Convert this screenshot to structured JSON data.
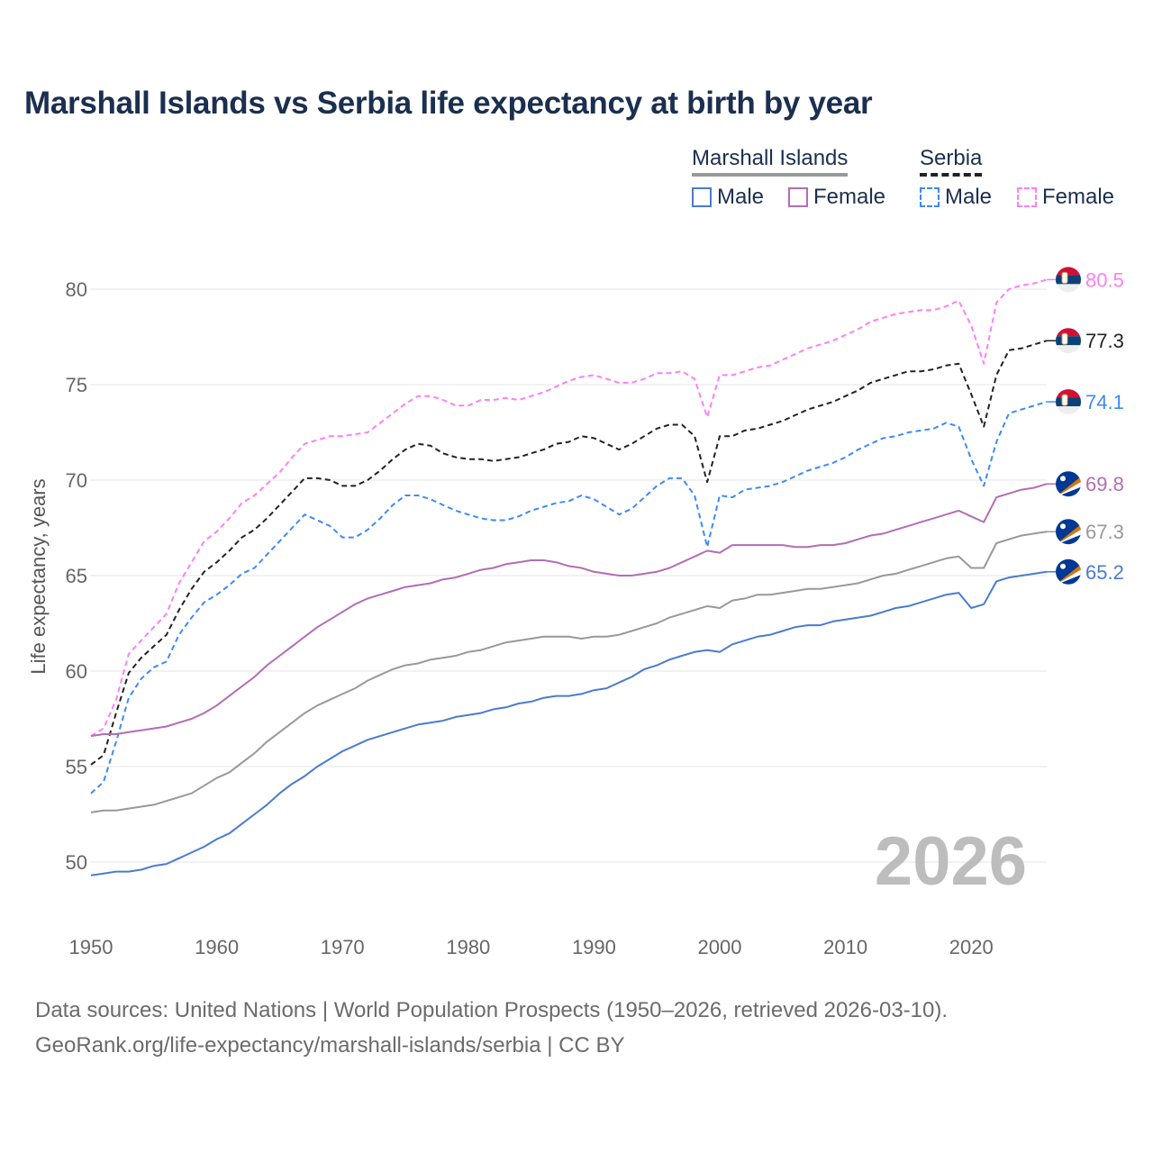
{
  "chart_data": {
    "type": "line",
    "title": "Marshall Islands vs Serbia life expectancy at birth by year",
    "xlabel": "",
    "ylabel": "Life expectancy, years",
    "xlim": [
      1950,
      2026
    ],
    "ylim": [
      47,
      82
    ],
    "yticks": [
      "50",
      "55",
      "60",
      "65",
      "70",
      "75",
      "80"
    ],
    "xticks": [
      "1950",
      "1960",
      "1970",
      "1980",
      "1990",
      "2000",
      "2010",
      "2020"
    ],
    "grid": true,
    "year_watermark": "2026",
    "legend": {
      "placement": "top-right",
      "groups": [
        {
          "name": "Marshall Islands",
          "items": [
            "Male",
            "Female"
          ]
        },
        {
          "name": "Serbia",
          "items": [
            "Male",
            "Female"
          ]
        }
      ]
    },
    "x_start": 1950,
    "series": [
      {
        "name": "Serbia Female",
        "country": "Serbia",
        "color": "#ff7ff5",
        "dashed": true,
        "end_label": "80.5",
        "values": [
          56.6,
          57.0,
          58.5,
          60.9,
          61.6,
          62.3,
          63.0,
          64.6,
          65.7,
          66.8,
          67.3,
          68.0,
          68.8,
          69.2,
          69.8,
          70.4,
          71.2,
          71.9,
          72.1,
          72.3,
          72.3,
          72.4,
          72.5,
          73.0,
          73.5,
          74.0,
          74.4,
          74.4,
          74.2,
          73.9,
          73.9,
          74.2,
          74.2,
          74.3,
          74.2,
          74.4,
          74.6,
          74.9,
          75.2,
          75.4,
          75.5,
          75.3,
          75.1,
          75.1,
          75.3,
          75.6,
          75.6,
          75.7,
          75.3,
          73.3,
          75.5,
          75.5,
          75.7,
          75.9,
          76.0,
          76.3,
          76.6,
          76.9,
          77.1,
          77.3,
          77.6,
          77.9,
          78.3,
          78.5,
          78.7,
          78.8,
          78.9,
          78.9,
          79.1,
          79.4,
          78.1,
          76.1,
          79.3,
          80.0,
          80.2,
          80.3,
          80.5
        ]
      },
      {
        "name": "Serbia",
        "country": "Serbia",
        "color": "#222222",
        "dashed": true,
        "end_label": "77.3",
        "values": [
          55.1,
          55.6,
          57.8,
          59.9,
          60.7,
          61.3,
          61.9,
          63.2,
          64.3,
          65.2,
          65.7,
          66.3,
          67.0,
          67.4,
          68.0,
          68.7,
          69.4,
          70.1,
          70.1,
          70.0,
          69.7,
          69.7,
          70.0,
          70.5,
          71.1,
          71.6,
          71.9,
          71.8,
          71.4,
          71.2,
          71.1,
          71.1,
          71.0,
          71.1,
          71.2,
          71.4,
          71.6,
          71.9,
          72.0,
          72.3,
          72.2,
          71.9,
          71.6,
          71.9,
          72.3,
          72.7,
          72.9,
          72.9,
          72.3,
          69.9,
          72.3,
          72.3,
          72.6,
          72.7,
          72.9,
          73.1,
          73.4,
          73.7,
          73.9,
          74.1,
          74.4,
          74.7,
          75.1,
          75.3,
          75.5,
          75.7,
          75.7,
          75.8,
          76.0,
          76.1,
          74.5,
          72.8,
          75.5,
          76.8,
          76.9,
          77.1,
          77.3
        ]
      },
      {
        "name": "Serbia Male",
        "country": "Serbia",
        "color": "#3d8af7",
        "dashed": true,
        "end_label": "74.1",
        "values": [
          53.6,
          54.2,
          56.3,
          58.6,
          59.6,
          60.2,
          60.5,
          61.9,
          62.8,
          63.6,
          64.0,
          64.5,
          65.1,
          65.4,
          66.1,
          66.8,
          67.5,
          68.2,
          67.9,
          67.6,
          67.0,
          67.0,
          67.4,
          68.0,
          68.7,
          69.2,
          69.2,
          69.0,
          68.7,
          68.4,
          68.2,
          68.0,
          67.9,
          67.9,
          68.1,
          68.4,
          68.6,
          68.8,
          68.9,
          69.2,
          69.0,
          68.6,
          68.2,
          68.5,
          69.1,
          69.7,
          70.1,
          70.1,
          69.2,
          66.5,
          69.2,
          69.1,
          69.5,
          69.6,
          69.7,
          69.9,
          70.2,
          70.5,
          70.7,
          70.9,
          71.2,
          71.6,
          71.9,
          72.2,
          72.3,
          72.5,
          72.6,
          72.7,
          73.0,
          72.8,
          71.1,
          69.7,
          72.0,
          73.5,
          73.7,
          73.9,
          74.1
        ]
      },
      {
        "name": "Marshall Islands Female",
        "country": "Marshall Islands",
        "color": "#b36db3",
        "dashed": false,
        "end_label": "69.8",
        "values": [
          56.6,
          56.7,
          56.7,
          56.8,
          56.9,
          57.0,
          57.1,
          57.3,
          57.5,
          57.8,
          58.2,
          58.7,
          59.2,
          59.7,
          60.3,
          60.8,
          61.3,
          61.8,
          62.3,
          62.7,
          63.1,
          63.5,
          63.8,
          64.0,
          64.2,
          64.4,
          64.5,
          64.6,
          64.8,
          64.9,
          65.1,
          65.3,
          65.4,
          65.6,
          65.7,
          65.8,
          65.8,
          65.7,
          65.5,
          65.4,
          65.2,
          65.1,
          65.0,
          65.0,
          65.1,
          65.2,
          65.4,
          65.7,
          66.0,
          66.3,
          66.2,
          66.6,
          66.6,
          66.6,
          66.6,
          66.6,
          66.5,
          66.5,
          66.6,
          66.6,
          66.7,
          66.9,
          67.1,
          67.2,
          67.4,
          67.6,
          67.8,
          68.0,
          68.2,
          68.4,
          68.1,
          67.8,
          69.1,
          69.3,
          69.5,
          69.6,
          69.8
        ]
      },
      {
        "name": "Marshall Islands",
        "country": "Marshall Islands",
        "color": "#999999",
        "dashed": false,
        "end_label": "67.3",
        "values": [
          52.6,
          52.7,
          52.7,
          52.8,
          52.9,
          53.0,
          53.2,
          53.4,
          53.6,
          54.0,
          54.4,
          54.7,
          55.2,
          55.7,
          56.3,
          56.8,
          57.3,
          57.8,
          58.2,
          58.5,
          58.8,
          59.1,
          59.5,
          59.8,
          60.1,
          60.3,
          60.4,
          60.6,
          60.7,
          60.8,
          61.0,
          61.1,
          61.3,
          61.5,
          61.6,
          61.7,
          61.8,
          61.8,
          61.8,
          61.7,
          61.8,
          61.8,
          61.9,
          62.1,
          62.3,
          62.5,
          62.8,
          63.0,
          63.2,
          63.4,
          63.3,
          63.7,
          63.8,
          64.0,
          64.0,
          64.1,
          64.2,
          64.3,
          64.3,
          64.4,
          64.5,
          64.6,
          64.8,
          65.0,
          65.1,
          65.3,
          65.5,
          65.7,
          65.9,
          66.0,
          65.4,
          65.4,
          66.7,
          66.9,
          67.1,
          67.2,
          67.3
        ]
      },
      {
        "name": "Marshall Islands Male",
        "country": "Marshall Islands",
        "color": "#4a7bd0",
        "dashed": false,
        "end_label": "65.2",
        "values": [
          49.3,
          49.4,
          49.5,
          49.5,
          49.6,
          49.8,
          49.9,
          50.2,
          50.5,
          50.8,
          51.2,
          51.5,
          52.0,
          52.5,
          53.0,
          53.6,
          54.1,
          54.5,
          55.0,
          55.4,
          55.8,
          56.1,
          56.4,
          56.6,
          56.8,
          57.0,
          57.2,
          57.3,
          57.4,
          57.6,
          57.7,
          57.8,
          58.0,
          58.1,
          58.3,
          58.4,
          58.6,
          58.7,
          58.7,
          58.8,
          59.0,
          59.1,
          59.4,
          59.7,
          60.1,
          60.3,
          60.6,
          60.8,
          61.0,
          61.1,
          61.0,
          61.4,
          61.6,
          61.8,
          61.9,
          62.1,
          62.3,
          62.4,
          62.4,
          62.6,
          62.7,
          62.8,
          62.9,
          63.1,
          63.3,
          63.4,
          63.6,
          63.8,
          64.0,
          64.1,
          63.3,
          63.5,
          64.7,
          64.9,
          65.0,
          65.1,
          65.2
        ]
      }
    ]
  },
  "sources": {
    "line1": "Data sources: United Nations | World Population Prospects (1950–2026, retrieved 2026-03-10).",
    "line2": "GeoRank.org/life-expectancy/marshall-islands/serbia | CC BY"
  }
}
